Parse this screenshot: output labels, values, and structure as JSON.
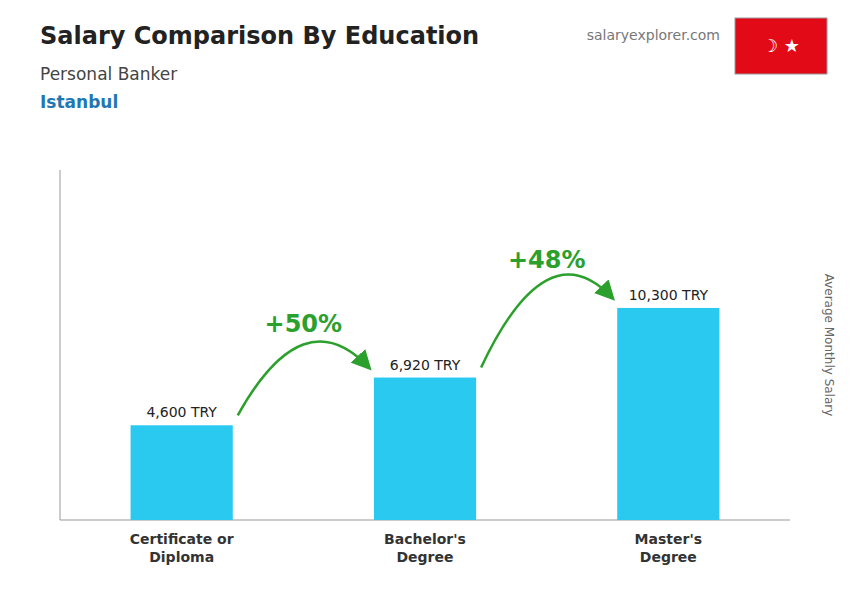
{
  "chart_data": {
    "type": "bar",
    "title": "Salary Comparison By Education",
    "subtitle": "Personal Banker",
    "city": "Istanbul",
    "source": "salaryexplorer.com",
    "flag": "☽  ★",
    "y_label": "Average Monthly Salary",
    "categories": [
      "Certificate or\nDiploma",
      "Bachelor's\nDegree",
      "Master's\nDegree"
    ],
    "values": [
      4600,
      6920,
      10300
    ],
    "value_labels": [
      "4,600 TRY",
      "6,920 TRY",
      "10,300 TRY"
    ],
    "data_labels": true,
    "annotations": [
      "+50%",
      "+48%"
    ],
    "color": "#29c9f0",
    "ylim": [
      0,
      17000
    ],
    "yticks": [],
    "grid": false,
    "tick_labels": "x"
  }
}
